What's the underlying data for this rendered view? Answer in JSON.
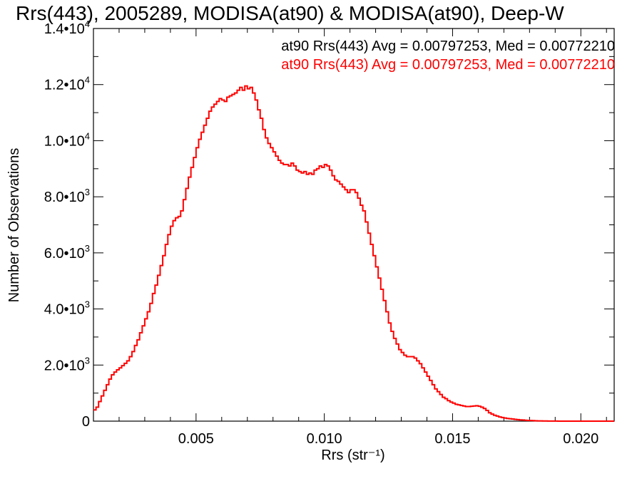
{
  "chart_data": {
    "type": "line",
    "title": "Rrs(443), 2005289, MODISA(at90) & MODISA(at90), Deep-W",
    "xlabel": "Rrs (str⁻¹)",
    "ylabel": "Number of Observations",
    "xlim": [
      0.001,
      0.0213
    ],
    "ylim": [
      0,
      14000
    ],
    "x_ticks": [
      0.005,
      0.01,
      0.015,
      0.02
    ],
    "x_tick_labels": [
      "0.005",
      "0.010",
      "0.015",
      "0.020"
    ],
    "y_ticks": [
      0,
      2000,
      4000,
      6000,
      8000,
      10000,
      12000,
      14000
    ],
    "y_tick_labels": [
      {
        "mant": "0",
        "exp": ""
      },
      {
        "mant": "2.0•10",
        "exp": "3"
      },
      {
        "mant": "4.0•10",
        "exp": "3"
      },
      {
        "mant": "6.0•10",
        "exp": "3"
      },
      {
        "mant": "8.0•10",
        "exp": "3"
      },
      {
        "mant": "1.0•10",
        "exp": "4"
      },
      {
        "mant": "1.2•10",
        "exp": "4"
      },
      {
        "mant": "1.4•10",
        "exp": "4"
      }
    ],
    "grid": false,
    "legend_position": "top-right",
    "annotations": [
      {
        "text": "at90 Rrs(443) Avg = 0.00797253, Med = 0.00772210",
        "color": "#000000"
      },
      {
        "text": "at90 Rrs(443) Avg = 0.00797253, Med = 0.00772210",
        "color": "#ff0000"
      }
    ],
    "series": [
      {
        "color": "#ff0000",
        "style": "step",
        "points": [
          [
            0.001,
            400
          ],
          [
            0.0011,
            500
          ],
          [
            0.0012,
            700
          ],
          [
            0.0013,
            900
          ],
          [
            0.0014,
            1100
          ],
          [
            0.0015,
            1300
          ],
          [
            0.0016,
            1500
          ],
          [
            0.0017,
            1650
          ],
          [
            0.0018,
            1750
          ],
          [
            0.0019,
            1830
          ],
          [
            0.002,
            1900
          ],
          [
            0.0021,
            1980
          ],
          [
            0.0022,
            2060
          ],
          [
            0.0023,
            2150
          ],
          [
            0.0024,
            2300
          ],
          [
            0.0025,
            2480
          ],
          [
            0.0026,
            2700
          ],
          [
            0.0027,
            2900
          ],
          [
            0.0028,
            3150
          ],
          [
            0.0029,
            3400
          ],
          [
            0.003,
            3650
          ],
          [
            0.0031,
            3900
          ],
          [
            0.0032,
            4200
          ],
          [
            0.0033,
            4550
          ],
          [
            0.0034,
            4850
          ],
          [
            0.0035,
            5200
          ],
          [
            0.0036,
            5550
          ],
          [
            0.0037,
            5900
          ],
          [
            0.0038,
            6300
          ],
          [
            0.0039,
            6650
          ],
          [
            0.004,
            6950
          ],
          [
            0.0041,
            7150
          ],
          [
            0.0042,
            7250
          ],
          [
            0.0043,
            7300
          ],
          [
            0.0044,
            7500
          ],
          [
            0.0045,
            7900
          ],
          [
            0.0046,
            8300
          ],
          [
            0.0047,
            8700
          ],
          [
            0.0048,
            9050
          ],
          [
            0.0049,
            9400
          ],
          [
            0.005,
            9750
          ],
          [
            0.0051,
            10050
          ],
          [
            0.0052,
            10300
          ],
          [
            0.0053,
            10550
          ],
          [
            0.0054,
            10800
          ],
          [
            0.0055,
            11050
          ],
          [
            0.0056,
            11200
          ],
          [
            0.0057,
            11300
          ],
          [
            0.0058,
            11400
          ],
          [
            0.0059,
            11500
          ],
          [
            0.006,
            11450
          ],
          [
            0.0061,
            11400
          ],
          [
            0.0062,
            11550
          ],
          [
            0.0063,
            11600
          ],
          [
            0.0064,
            11650
          ],
          [
            0.0065,
            11700
          ],
          [
            0.0066,
            11800
          ],
          [
            0.0067,
            11900
          ],
          [
            0.0068,
            11800
          ],
          [
            0.0069,
            11950
          ],
          [
            0.007,
            11850
          ],
          [
            0.0071,
            11900
          ],
          [
            0.0072,
            11700
          ],
          [
            0.0073,
            11450
          ],
          [
            0.0074,
            11100
          ],
          [
            0.0075,
            10800
          ],
          [
            0.0076,
            10400
          ],
          [
            0.0077,
            10100
          ],
          [
            0.0078,
            9900
          ],
          [
            0.0079,
            9750
          ],
          [
            0.008,
            9600
          ],
          [
            0.0081,
            9450
          ],
          [
            0.0082,
            9300
          ],
          [
            0.0083,
            9200
          ],
          [
            0.0084,
            9150
          ],
          [
            0.0085,
            9150
          ],
          [
            0.0086,
            9100
          ],
          [
            0.0087,
            9200
          ],
          [
            0.0088,
            9100
          ],
          [
            0.0089,
            8950
          ],
          [
            0.009,
            8900
          ],
          [
            0.0091,
            8850
          ],
          [
            0.0092,
            8900
          ],
          [
            0.0093,
            8800
          ],
          [
            0.0094,
            8850
          ],
          [
            0.0095,
            8800
          ],
          [
            0.0096,
            8950
          ],
          [
            0.0097,
            9000
          ],
          [
            0.0098,
            9100
          ],
          [
            0.0099,
            9050
          ],
          [
            0.01,
            9150
          ],
          [
            0.0101,
            9100
          ],
          [
            0.0102,
            8950
          ],
          [
            0.0103,
            8750
          ],
          [
            0.0104,
            8600
          ],
          [
            0.0105,
            8550
          ],
          [
            0.0106,
            8450
          ],
          [
            0.0107,
            8350
          ],
          [
            0.0108,
            8250
          ],
          [
            0.0109,
            8150
          ],
          [
            0.011,
            8250
          ],
          [
            0.0111,
            8250
          ],
          [
            0.0112,
            8150
          ],
          [
            0.0113,
            7950
          ],
          [
            0.0114,
            7700
          ],
          [
            0.0115,
            7500
          ],
          [
            0.0116,
            7100
          ],
          [
            0.0117,
            6700
          ],
          [
            0.0118,
            6300
          ],
          [
            0.0119,
            5900
          ],
          [
            0.012,
            5500
          ],
          [
            0.0121,
            5100
          ],
          [
            0.0122,
            4700
          ],
          [
            0.0123,
            4300
          ],
          [
            0.0124,
            3900
          ],
          [
            0.0125,
            3500
          ],
          [
            0.0126,
            3200
          ],
          [
            0.0127,
            2950
          ],
          [
            0.0128,
            2750
          ],
          [
            0.0129,
            2550
          ],
          [
            0.013,
            2450
          ],
          [
            0.0131,
            2350
          ],
          [
            0.0132,
            2300
          ],
          [
            0.0133,
            2300
          ],
          [
            0.0134,
            2300
          ],
          [
            0.0135,
            2250
          ],
          [
            0.0136,
            2150
          ],
          [
            0.0137,
            2050
          ],
          [
            0.0138,
            1900
          ],
          [
            0.0139,
            1750
          ],
          [
            0.014,
            1600
          ],
          [
            0.0141,
            1450
          ],
          [
            0.0142,
            1300
          ],
          [
            0.0143,
            1150
          ],
          [
            0.0144,
            1050
          ],
          [
            0.0145,
            950
          ],
          [
            0.0146,
            850
          ],
          [
            0.0147,
            800
          ],
          [
            0.0148,
            730
          ],
          [
            0.0149,
            680
          ],
          [
            0.015,
            640
          ],
          [
            0.0151,
            600
          ],
          [
            0.0152,
            580
          ],
          [
            0.0153,
            560
          ],
          [
            0.0154,
            540
          ],
          [
            0.0155,
            520
          ],
          [
            0.0156,
            520
          ],
          [
            0.0157,
            530
          ],
          [
            0.0158,
            540
          ],
          [
            0.0159,
            550
          ],
          [
            0.016,
            530
          ],
          [
            0.0161,
            500
          ],
          [
            0.0162,
            450
          ],
          [
            0.0163,
            380
          ],
          [
            0.0164,
            300
          ],
          [
            0.0165,
            250
          ],
          [
            0.0166,
            210
          ],
          [
            0.0167,
            180
          ],
          [
            0.0168,
            150
          ],
          [
            0.0169,
            130
          ],
          [
            0.017,
            110
          ],
          [
            0.0171,
            95
          ],
          [
            0.0172,
            85
          ],
          [
            0.0173,
            75
          ],
          [
            0.0174,
            65
          ],
          [
            0.0175,
            55
          ],
          [
            0.0176,
            45
          ],
          [
            0.0177,
            40
          ],
          [
            0.0178,
            33
          ],
          [
            0.0179,
            27
          ],
          [
            0.018,
            22
          ],
          [
            0.0181,
            18
          ],
          [
            0.0182,
            14
          ],
          [
            0.0183,
            11
          ],
          [
            0.0184,
            9
          ],
          [
            0.0185,
            7
          ],
          [
            0.0186,
            5
          ],
          [
            0.0187,
            4
          ],
          [
            0.0188,
            3
          ],
          [
            0.0189,
            2
          ],
          [
            0.019,
            2
          ],
          [
            0.0191,
            1
          ],
          [
            0.0192,
            1
          ],
          [
            0.0193,
            1
          ],
          [
            0.0194,
            0
          ],
          [
            0.0195,
            0
          ],
          [
            0.0196,
            0
          ],
          [
            0.0197,
            0
          ],
          [
            0.0198,
            0
          ],
          [
            0.0199,
            0
          ],
          [
            0.02,
            0
          ],
          [
            0.0201,
            0
          ],
          [
            0.0202,
            0
          ],
          [
            0.0203,
            0
          ],
          [
            0.0204,
            0
          ],
          [
            0.0205,
            0
          ],
          [
            0.0206,
            0
          ],
          [
            0.0207,
            0
          ],
          [
            0.0208,
            0
          ],
          [
            0.0209,
            0
          ],
          [
            0.021,
            0
          ],
          [
            0.0211,
            0
          ],
          [
            0.0212,
            0
          ],
          [
            0.0213,
            0
          ]
        ]
      }
    ]
  }
}
